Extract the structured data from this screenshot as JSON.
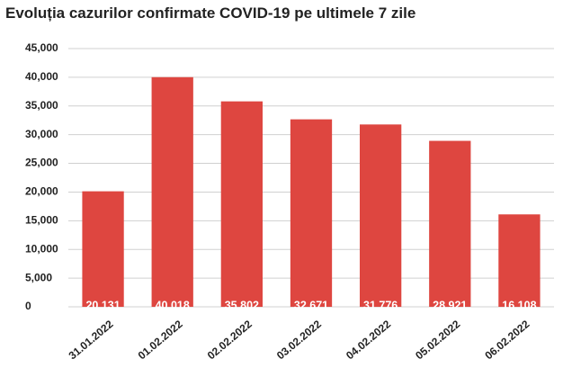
{
  "chart_data": {
    "type": "bar",
    "title": "Evoluția cazurilor confirmate COVID-19 pe ultimele 7 zile",
    "categories": [
      "31.01.2022",
      "01.02.2022",
      "02.02.2022",
      "03.02.2022",
      "04.02.2022",
      "05.02.2022",
      "06.02.2022"
    ],
    "values": [
      20131,
      40018,
      35802,
      32671,
      31776,
      28921,
      16108
    ],
    "value_labels": [
      "20,131",
      "40,018",
      "35,802",
      "32,671",
      "31,776",
      "28,921",
      "16,108"
    ],
    "color": "#de4640",
    "ylim": [
      0,
      45000
    ],
    "yticks": [
      0,
      {
        "value": 5000,
        "label": "5,000"
      },
      {
        "value": 10000,
        "label": "10,000"
      },
      {
        "value": 15000,
        "label": "15,000"
      },
      {
        "value": 20000,
        "label": "20,000"
      },
      {
        "value": 25000,
        "label": "25,000"
      },
      {
        "value": 30000,
        "label": "30,000"
      },
      {
        "value": 35000,
        "label": "35,000"
      },
      {
        "value": 40000,
        "label": "40,000"
      },
      {
        "value": 45000,
        "label": "45,000"
      }
    ],
    "grid": true
  }
}
